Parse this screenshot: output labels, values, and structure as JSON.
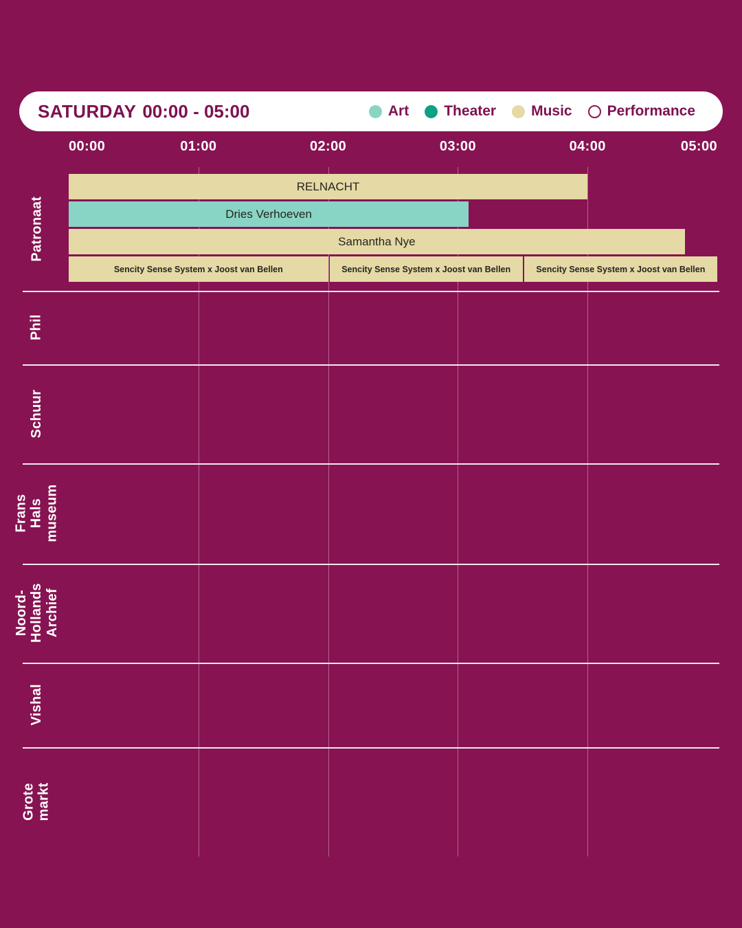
{
  "header": {
    "day": "SATURDAY",
    "time_range": "00:00 - 05:00",
    "legend": [
      {
        "label": "Art",
        "color": "#89d5c5",
        "style": "filled"
      },
      {
        "label": "Theater",
        "color": "#0ca184",
        "style": "filled"
      },
      {
        "label": "Music",
        "color": "#e5d9a6",
        "style": "filled"
      },
      {
        "label": "Performance",
        "color": "#ffffff",
        "style": "outline",
        "outline_color": "#8c1556"
      }
    ]
  },
  "timeline": {
    "ticks": [
      "00:00",
      "01:00",
      "02:00",
      "03:00",
      "04:00",
      "05:00"
    ]
  },
  "venues": [
    {
      "name": "Patronaat",
      "label_lines": [
        "Patronaat"
      ]
    },
    {
      "name": "Phil",
      "label_lines": [
        "Phil"
      ]
    },
    {
      "name": "Schuur",
      "label_lines": [
        "Schuur"
      ]
    },
    {
      "name": "Frans Hals museum",
      "label_lines": [
        "Frans Hals",
        "museum"
      ]
    },
    {
      "name": "Noord-Hollands Archief",
      "label_lines": [
        "Noord-",
        "Hollands",
        "Archief"
      ]
    },
    {
      "name": "Vishal",
      "label_lines": [
        "Vishal"
      ]
    },
    {
      "name": "Grote markt",
      "label_lines": [
        "Grote",
        "markt"
      ]
    }
  ],
  "chart_data": {
    "type": "bar",
    "subtype": "gantt-schedule",
    "title": "SATURDAY 00:00 - 05:00",
    "time_axis": {
      "start": "00:00",
      "end": "05:00",
      "tick_interval_minutes": 60
    },
    "legend_position": "header-right",
    "events": [
      {
        "venue": "Patronaat",
        "lane": 0,
        "title": "RELNACHT",
        "category": "Music",
        "start": "00:00",
        "end": "04:00"
      },
      {
        "venue": "Patronaat",
        "lane": 1,
        "title": "Dries Verhoeven",
        "category": "Art",
        "start": "00:00",
        "end": "03:05"
      },
      {
        "venue": "Patronaat",
        "lane": 2,
        "title": "Samantha Nye",
        "category": "Music",
        "start": "00:00",
        "end": "04:45"
      },
      {
        "venue": "Patronaat",
        "lane": 3,
        "title": "Sencity Sense System x Joost van Bellen",
        "category": "Music",
        "start": "00:00",
        "end": "02:00"
      },
      {
        "venue": "Patronaat",
        "lane": 3,
        "title": "Sencity Sense System x Joost van Bellen",
        "category": "Music",
        "start": "02:00",
        "end": "03:30"
      },
      {
        "venue": "Patronaat",
        "lane": 3,
        "title": "Sencity Sense System x Joost van Bellen",
        "category": "Music",
        "start": "03:30",
        "end": "05:00"
      }
    ]
  },
  "colors": {
    "background": "#871352",
    "panel": "#ffffff",
    "header_text": "#7d1150",
    "event_text": "#26251f",
    "axis_text": "#ffffff",
    "venue_text": "#ffffff"
  }
}
